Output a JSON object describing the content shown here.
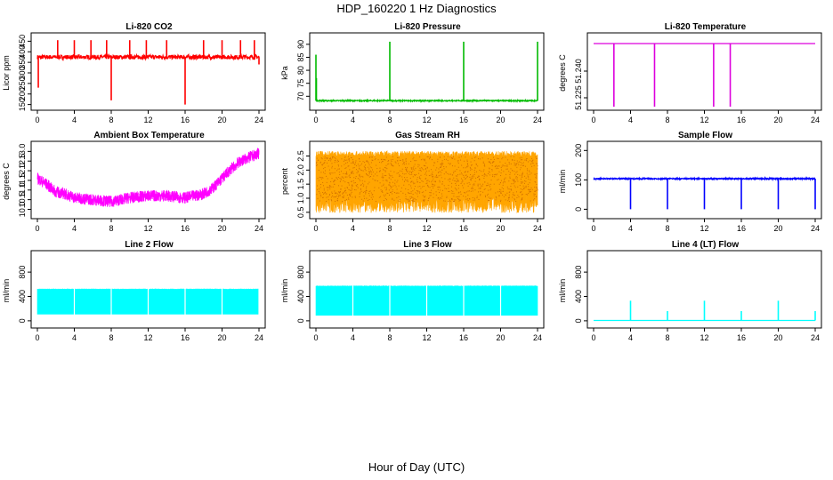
{
  "page": {
    "title": "HDP_160220  1 Hz Diagnostics",
    "x_title": "Hour of Day (UTC)"
  },
  "chart_data": [
    {
      "type": "line",
      "title": "Li-820 CO2",
      "ylabel": "Licor ppm",
      "color": "#ff0000",
      "xlim": [
        0,
        24
      ],
      "ylim": [
        140,
        460
      ],
      "x_ticks": [
        "0",
        "4",
        "8",
        "12",
        "16",
        "20",
        "24"
      ],
      "y_ticks": [
        "150",
        "200",
        "250",
        "300",
        "350",
        "400",
        "450"
      ],
      "series": [
        {
          "baseline": 375,
          "noise": 10,
          "x": [
            0,
            0.1,
            0.2,
            2.2,
            4,
            5.8,
            7.5,
            8,
            10,
            11.8,
            14,
            16,
            18,
            20,
            22,
            23.5,
            24
          ],
          "y": [
            375,
            230,
            375,
            455,
            455,
            455,
            455,
            170,
            455,
            455,
            455,
            150,
            455,
            455,
            455,
            455,
            340
          ]
        }
      ]
    },
    {
      "type": "line",
      "title": "Li-820 Pressure",
      "ylabel": "kPa",
      "color": "#00bb00",
      "xlim": [
        0,
        24
      ],
      "ylim": [
        66,
        92
      ],
      "x_ticks": [
        "0",
        "4",
        "8",
        "12",
        "16",
        "20",
        "24"
      ],
      "y_ticks": [
        "70",
        "75",
        "80",
        "85",
        "90"
      ],
      "series": [
        {
          "baseline": 68.3,
          "noise": 0.2,
          "x": [
            0,
            0.05,
            8,
            16,
            24
          ],
          "y": [
            86,
            77,
            91,
            91,
            91
          ]
        }
      ]
    },
    {
      "type": "line",
      "title": "Li-820 Temperature",
      "ylabel": "degrees C",
      "color": "#dd00dd",
      "xlim": [
        0,
        24
      ],
      "ylim": [
        51.22,
        51.258
      ],
      "x_ticks": [
        "0",
        "4",
        "8",
        "12",
        "16",
        "20",
        "24"
      ],
      "y_ticks": [
        "51.225",
        "51.240"
      ],
      "series": [
        {
          "baseline": 51.2555,
          "noise": 0,
          "x": [
            2.2,
            6.6,
            13.0,
            14.8
          ],
          "y": [
            51.22,
            51.22,
            51.22,
            51.22
          ]
        }
      ]
    },
    {
      "type": "line",
      "title": "Ambient Box Temperature",
      "ylabel": "degrees C",
      "color": "#ff00ff",
      "xlim": [
        0,
        24
      ],
      "ylim": [
        9.7,
        13.2
      ],
      "x_ticks": [
        "0",
        "4",
        "8",
        "12",
        "16",
        "20",
        "24"
      ],
      "y_ticks": [
        "10.0",
        "10.5",
        "11.0",
        "11.5",
        "12.0",
        "12.5",
        "13.0"
      ],
      "series": [
        {
          "noise": 0.3,
          "x": [
            0,
            1,
            2,
            3,
            4,
            6,
            8,
            10,
            12,
            14,
            16,
            17,
            18,
            19,
            20,
            21,
            22,
            23,
            24
          ],
          "y": [
            11.6,
            11.3,
            10.9,
            10.8,
            10.6,
            10.5,
            10.4,
            10.6,
            10.7,
            10.7,
            10.6,
            10.7,
            10.8,
            11.1,
            11.6,
            12.1,
            12.5,
            12.7,
            12.9
          ]
        }
      ]
    },
    {
      "type": "area",
      "title": "Gas Stream RH",
      "ylabel": "percent",
      "color": "#ffa500",
      "xlim": [
        0,
        24
      ],
      "ylim": [
        0.4,
        2.8
      ],
      "x_ticks": [
        "0",
        "4",
        "8",
        "12",
        "16",
        "20",
        "24"
      ],
      "y_ticks": [
        "0.5",
        "1.0",
        "1.5",
        "2.0",
        "2.5"
      ],
      "series": [
        {
          "x": [
            0,
            4,
            8,
            12,
            16,
            20,
            24
          ],
          "upper": [
            2.5,
            2.5,
            2.5,
            2.5,
            2.5,
            2.5,
            2.5
          ],
          "lower": [
            0.9,
            0.9,
            0.9,
            0.9,
            0.9,
            0.9,
            0.9
          ]
        }
      ]
    },
    {
      "type": "line",
      "title": "Sample Flow",
      "ylabel": "ml/min",
      "color": "#0000ff",
      "xlim": [
        0,
        24
      ],
      "ylim": [
        -20,
        210
      ],
      "x_ticks": [
        "0",
        "4",
        "8",
        "12",
        "16",
        "20",
        "24"
      ],
      "y_ticks": [
        "0",
        "100",
        "200"
      ],
      "series": [
        {
          "baseline": 104,
          "noise": 2,
          "x": [
            4,
            8,
            12,
            16,
            20,
            24
          ],
          "y": [
            0,
            0,
            0,
            0,
            0,
            0
          ]
        }
      ]
    },
    {
      "type": "area",
      "title": "Line 2 Flow",
      "ylabel": "ml/min",
      "color": "#00ffff",
      "xlim": [
        0,
        24
      ],
      "ylim": [
        -60,
        1050
      ],
      "x_ticks": [
        "0",
        "4",
        "8",
        "12",
        "16",
        "20",
        "24"
      ],
      "y_ticks": [
        "0",
        "400",
        "800"
      ],
      "series": [
        {
          "x": [
            0,
            24
          ],
          "upper": [
            520,
            520
          ],
          "lower": [
            110,
            110
          ],
          "gaps": [
            4,
            8,
            12,
            16,
            20,
            24
          ]
        }
      ]
    },
    {
      "type": "area",
      "title": "Line 3 Flow",
      "ylabel": "ml/min",
      "color": "#00ffff",
      "xlim": [
        0,
        24
      ],
      "ylim": [
        -60,
        1050
      ],
      "x_ticks": [
        "0",
        "4",
        "8",
        "12",
        "16",
        "20",
        "24"
      ],
      "y_ticks": [
        "0",
        "400",
        "800"
      ],
      "series": [
        {
          "x": [
            0,
            24
          ],
          "upper": [
            570,
            570
          ],
          "lower": [
            90,
            90
          ],
          "gaps": [
            4,
            8,
            12,
            16,
            20
          ]
        }
      ]
    },
    {
      "type": "line",
      "title": "Line 4 (LT) Flow",
      "ylabel": "ml/min",
      "color": "#00ffff",
      "xlim": [
        0,
        24
      ],
      "ylim": [
        -60,
        1050
      ],
      "x_ticks": [
        "0",
        "4",
        "8",
        "12",
        "16",
        "20",
        "24"
      ],
      "y_ticks": [
        "0",
        "400",
        "800"
      ],
      "series": [
        {
          "baseline": 5,
          "noise": 0,
          "x": [
            4,
            8,
            12,
            16,
            20,
            24
          ],
          "y": [
            330,
            160,
            330,
            160,
            330,
            160
          ]
        }
      ]
    }
  ]
}
